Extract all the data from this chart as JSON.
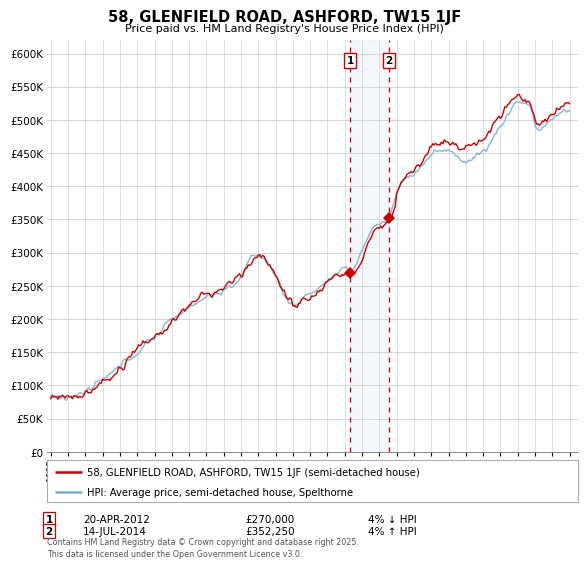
{
  "title": "58, GLENFIELD ROAD, ASHFORD, TW15 1JF",
  "subtitle": "Price paid vs. HM Land Registry's House Price Index (HPI)",
  "legend_line1": "58, GLENFIELD ROAD, ASHFORD, TW15 1JF (semi-detached house)",
  "legend_line2": "HPI: Average price, semi-detached house, Spelthorne",
  "annotation1_date": "20-APR-2012",
  "annotation1_price": "£270,000",
  "annotation1_hpi": "4% ↓ HPI",
  "annotation2_date": "14-JUL-2014",
  "annotation2_price": "£352,250",
  "annotation2_hpi": "4% ↑ HPI",
  "footnote": "Contains HM Land Registry data © Crown copyright and database right 2025.\nThis data is licensed under the Open Government Licence v3.0.",
  "hpi_color": "#7aadd4",
  "price_color": "#cc0000",
  "annotation_color": "#cc0000",
  "background_color": "#ffffff",
  "grid_color": "#d0d0d0",
  "ylim": [
    0,
    620000
  ],
  "ytick_step": 50000,
  "sale1_year": 2012.3,
  "sale1_price": 270000,
  "sale2_year": 2014.55,
  "sale2_price": 352250
}
